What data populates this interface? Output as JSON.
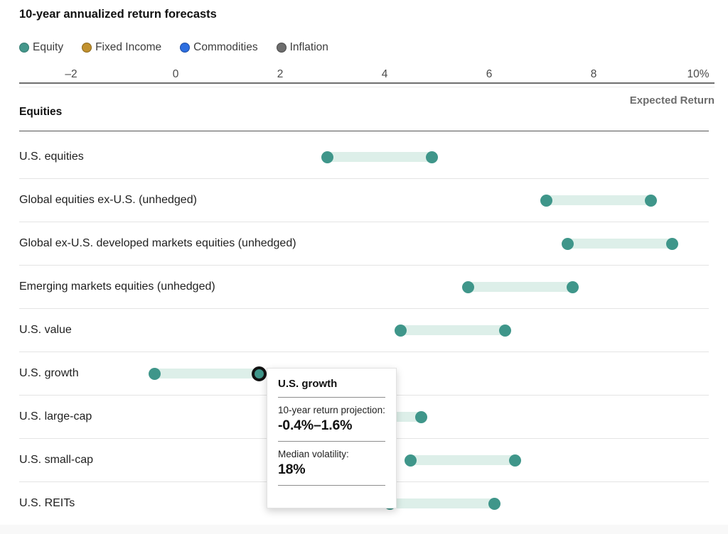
{
  "title": "10-year annualized return forecasts",
  "legend": {
    "items": [
      {
        "label": "Equity",
        "color": "#44978b",
        "border": "#367c72"
      },
      {
        "label": "Fixed Income",
        "color": "#c1912e",
        "border": "#8d681c"
      },
      {
        "label": "Commodities",
        "color": "#2d6ee0",
        "border": "#1c4ca3"
      },
      {
        "label": "Inflation",
        "color": "#6d6d6d",
        "border": "#4a4a4a"
      }
    ]
  },
  "axis": {
    "tick_labels": [
      "–2",
      "0",
      "2",
      "4",
      "6",
      "8",
      "10%"
    ],
    "tick_values": [
      -2,
      0,
      2,
      4,
      6,
      8,
      10
    ],
    "label": "Expected Return"
  },
  "section": {
    "label": "Equities"
  },
  "chart_data": {
    "type": "dumbbell-range",
    "title": "10-year annualized return forecasts",
    "xlabel": "Expected Return",
    "unit": "%",
    "xlim": [
      -2,
      10
    ],
    "x_ticks": [
      -2,
      0,
      2,
      4,
      6,
      8,
      10
    ],
    "group": "Equities",
    "legend_categories": [
      "Equity",
      "Fixed Income",
      "Commodities",
      "Inflation"
    ],
    "dot_color": "#3f968a",
    "bar_color": "#ddefe9",
    "rows": [
      {
        "label": "U.S. equities",
        "low": 2.9,
        "high": 4.9
      },
      {
        "label": "Global equities ex-U.S. (unhedged)",
        "low": 7.1,
        "high": 9.1
      },
      {
        "label": "Global ex-U.S. developed markets equities (unhedged)",
        "low": 7.5,
        "high": 9.5
      },
      {
        "label": "Emerging markets equities (unhedged)",
        "low": 5.6,
        "high": 7.6
      },
      {
        "label": "U.S. value",
        "low": 4.3,
        "high": 6.3
      },
      {
        "label": "U.S. growth",
        "low": -0.4,
        "high": 1.6,
        "highlighted_end": "high",
        "median_volatility": "18%"
      },
      {
        "label": "U.S. large-cap",
        "low": 2.7,
        "high": 4.7
      },
      {
        "label": "U.S. small-cap",
        "low": 4.5,
        "high": 6.5
      },
      {
        "label": "U.S. REITs",
        "low": 4.1,
        "high": 6.1
      }
    ]
  },
  "tooltip": {
    "title": "U.S. growth",
    "projection_label": "10-year return projection:",
    "projection_value": "-0.4%–1.6%",
    "volatility_label": "Median volatility:",
    "volatility_value": "18%"
  }
}
